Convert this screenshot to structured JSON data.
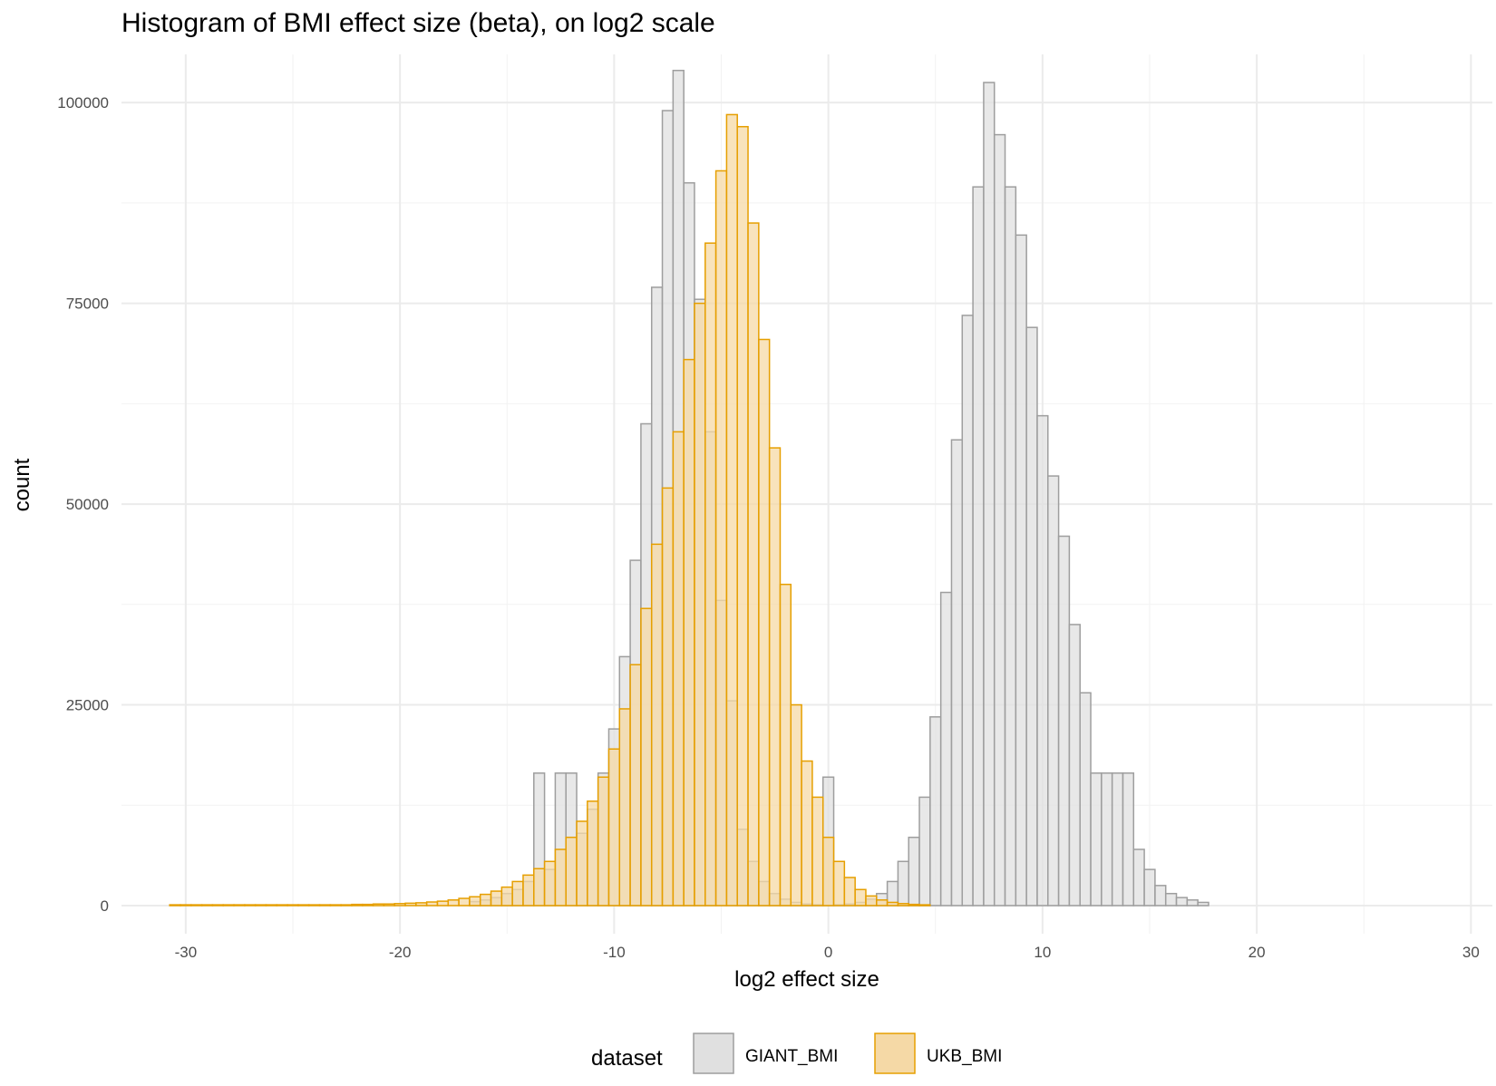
{
  "chart_data": {
    "type": "bar",
    "title": "Histogram of BMI effect size (beta), on log2 scale",
    "xlabel": "log2 effect size",
    "ylabel": "count",
    "xlim": [
      -33,
      31
    ],
    "ylim": [
      -3500,
      106000
    ],
    "x_ticks": [
      -30,
      -20,
      -10,
      0,
      10,
      20,
      30
    ],
    "y_ticks": [
      0,
      25000,
      50000,
      75000,
      100000
    ],
    "x_tick_labels": [
      "-30",
      "-20",
      "-10",
      "0",
      "10",
      "20",
      "30"
    ],
    "y_tick_labels": [
      "0",
      "25000",
      "50000",
      "75000",
      "100000"
    ],
    "grid": true,
    "bin_width": 0.5,
    "legend": {
      "title": "dataset",
      "position": "bottom",
      "entries": [
        "GIANT_BMI",
        "UKB_BMI"
      ]
    },
    "series": [
      {
        "name": "GIANT_BMI",
        "fill": "#e0e0e0",
        "stroke": "#9e9e9e",
        "bins": [
          [
            -16.5,
            500
          ],
          [
            -16,
            700
          ],
          [
            -15.5,
            1000
          ],
          [
            -15,
            1500
          ],
          [
            -14.5,
            2000
          ],
          [
            -14,
            3000
          ],
          [
            -13.5,
            16500
          ],
          [
            -13,
            4500
          ],
          [
            -12.5,
            16500
          ],
          [
            -12,
            16500
          ],
          [
            -11.5,
            9000
          ],
          [
            -11,
            12000
          ],
          [
            -10.5,
            16500
          ],
          [
            -10,
            22000
          ],
          [
            -9.5,
            31000
          ],
          [
            -9,
            43000
          ],
          [
            -8.5,
            60000
          ],
          [
            -8,
            77000
          ],
          [
            -7.5,
            99000
          ],
          [
            -7,
            104000
          ],
          [
            -6.5,
            90000
          ],
          [
            -6,
            75500
          ],
          [
            -5.5,
            59000
          ],
          [
            -5,
            38000
          ],
          [
            -4.5,
            25500
          ],
          [
            -4,
            9500
          ],
          [
            -3.5,
            5500
          ],
          [
            -3,
            3000
          ],
          [
            -2.5,
            1500
          ],
          [
            -2,
            800
          ],
          [
            -1.5,
            400
          ],
          [
            -1,
            200
          ],
          [
            -0.5,
            100
          ],
          [
            0,
            16000
          ],
          [
            0.5,
            100
          ],
          [
            1,
            200
          ],
          [
            1.5,
            400
          ],
          [
            2,
            800
          ],
          [
            2.5,
            1500
          ],
          [
            3,
            3000
          ],
          [
            3.5,
            5500
          ],
          [
            4,
            8500
          ],
          [
            4.5,
            13500
          ],
          [
            5,
            23500
          ],
          [
            5.5,
            39000
          ],
          [
            6,
            58000
          ],
          [
            6.5,
            73500
          ],
          [
            7,
            89500
          ],
          [
            7.5,
            102500
          ],
          [
            8,
            96000
          ],
          [
            8.5,
            89500
          ],
          [
            9,
            83500
          ],
          [
            9.5,
            72000
          ],
          [
            10,
            61000
          ],
          [
            10.5,
            53500
          ],
          [
            11,
            46000
          ],
          [
            11.5,
            35000
          ],
          [
            12,
            26500
          ],
          [
            12.5,
            16500
          ],
          [
            13,
            16500
          ],
          [
            13.5,
            16500
          ],
          [
            14,
            16500
          ],
          [
            14.5,
            7000
          ],
          [
            15,
            4500
          ],
          [
            15.5,
            2500
          ],
          [
            16,
            1500
          ],
          [
            16.5,
            1000
          ],
          [
            17,
            700
          ],
          [
            17.5,
            400
          ]
        ]
      },
      {
        "name": "UKB_BMI",
        "fill": "#f5d9a6",
        "stroke": "#e69f00",
        "bins": [
          [
            -30.5,
            100
          ],
          [
            -30,
            100
          ],
          [
            -29.5,
            100
          ],
          [
            -29,
            100
          ],
          [
            -28.5,
            100
          ],
          [
            -28,
            100
          ],
          [
            -27.5,
            100
          ],
          [
            -27,
            100
          ],
          [
            -26.5,
            100
          ],
          [
            -26,
            100
          ],
          [
            -25.5,
            100
          ],
          [
            -25,
            100
          ],
          [
            -24.5,
            100
          ],
          [
            -24,
            100
          ],
          [
            -23.5,
            100
          ],
          [
            -23,
            100
          ],
          [
            -22.5,
            100
          ],
          [
            -22,
            150
          ],
          [
            -21.5,
            150
          ],
          [
            -21,
            200
          ],
          [
            -20.5,
            200
          ],
          [
            -20,
            250
          ],
          [
            -19.5,
            300
          ],
          [
            -19,
            350
          ],
          [
            -18.5,
            450
          ],
          [
            -18,
            550
          ],
          [
            -17.5,
            700
          ],
          [
            -17,
            900
          ],
          [
            -16.5,
            1100
          ],
          [
            -16,
            1400
          ],
          [
            -15.5,
            1800
          ],
          [
            -15,
            2300
          ],
          [
            -14.5,
            3000
          ],
          [
            -14,
            3800
          ],
          [
            -13.5,
            4600
          ],
          [
            -13,
            5500
          ],
          [
            -12.5,
            7000
          ],
          [
            -12,
            8500
          ],
          [
            -11.5,
            10500
          ],
          [
            -11,
            13000
          ],
          [
            -10.5,
            16000
          ],
          [
            -10,
            19500
          ],
          [
            -9.5,
            24500
          ],
          [
            -9,
            30000
          ],
          [
            -8.5,
            37000
          ],
          [
            -8,
            45000
          ],
          [
            -7.5,
            52000
          ],
          [
            -7,
            59000
          ],
          [
            -6.5,
            68000
          ],
          [
            -6,
            75000
          ],
          [
            -5.5,
            82500
          ],
          [
            -5,
            91500
          ],
          [
            -4.5,
            98500
          ],
          [
            -4,
            97000
          ],
          [
            -3.5,
            85000
          ],
          [
            -3,
            70500
          ],
          [
            -2.5,
            57000
          ],
          [
            -2,
            40000
          ],
          [
            -1.5,
            25000
          ],
          [
            -1,
            18000
          ],
          [
            -0.5,
            13500
          ],
          [
            0,
            8500
          ],
          [
            0.5,
            5500
          ],
          [
            1,
            3500
          ],
          [
            1.5,
            2000
          ],
          [
            2,
            1200
          ],
          [
            2.5,
            700
          ],
          [
            3,
            400
          ],
          [
            3.5,
            250
          ],
          [
            4,
            150
          ],
          [
            4.5,
            100
          ]
        ]
      }
    ]
  }
}
